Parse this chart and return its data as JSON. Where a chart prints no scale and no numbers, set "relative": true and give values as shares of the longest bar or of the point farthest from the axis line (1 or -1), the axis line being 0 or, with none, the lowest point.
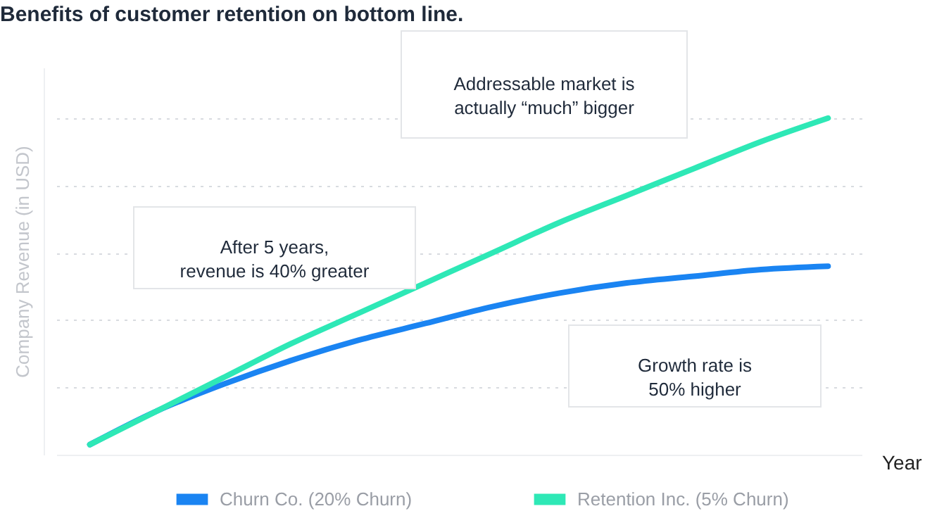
{
  "chart_data": {
    "type": "line",
    "title": "Benefits of customer retention on bottom line.",
    "xlabel": "Year",
    "ylabel": "Company Revenue (in USD)",
    "relative": true,
    "grid": "y",
    "legend": "bottom",
    "categories": [
      null,
      null,
      null,
      null,
      null,
      null,
      null,
      null,
      null,
      null,
      null,
      null
    ],
    "series": [
      {
        "name": "Churn Co. (20% Churn)",
        "color": "#1a84f2",
        "values": [
          0.03,
          0.13,
          0.21,
          0.28,
          0.34,
          0.39,
          0.44,
          0.48,
          0.51,
          0.53,
          0.55,
          0.56
        ]
      },
      {
        "name": "Retention Inc. (5% Churn)",
        "color": "#2ee8b6",
        "values": [
          0.03,
          0.13,
          0.23,
          0.33,
          0.42,
          0.51,
          0.6,
          0.69,
          0.77,
          0.85,
          0.93,
          1
        ]
      }
    ],
    "annotations": [
      "Addressable market is\nactually “much” bigger",
      "After 5 years,\nrevenue is 40% greater",
      "Growth rate is\n50% higher"
    ]
  }
}
